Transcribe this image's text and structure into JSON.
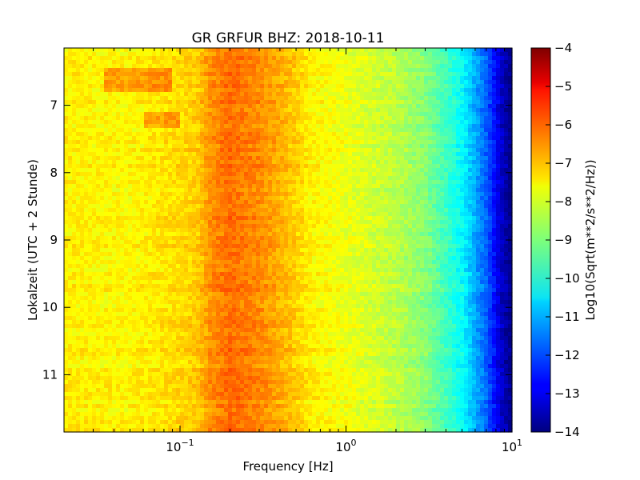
{
  "chart_data": {
    "type": "heatmap",
    "title": "GR GRFUR BHZ: 2018-10-11",
    "xlabel": "Frequency [Hz]",
    "ylabel": "Lokalzeit (UTC + 2 Stunde)",
    "x_scale": "log",
    "xlim": [
      0.02,
      10
    ],
    "ylim": [
      6.15,
      11.85
    ],
    "y_inverted": true,
    "x_ticks": [
      {
        "value": 0.1,
        "base": "10",
        "exp": "−1"
      },
      {
        "value": 1,
        "base": "10",
        "exp": "0"
      },
      {
        "value": 10,
        "base": "10",
        "exp": "1"
      }
    ],
    "y_ticks": [
      7,
      8,
      9,
      10,
      11
    ],
    "y_tick_labels": [
      "7",
      "8",
      "9",
      "10",
      "11"
    ],
    "colorbar": {
      "label": "Log10(Sqrt(m**2/s**2/Hz))",
      "colormap": "jet",
      "range": [
        -14,
        -4
      ],
      "ticks": [
        -4,
        -5,
        -6,
        -7,
        -8,
        -9,
        -10,
        -11,
        -12,
        -13,
        -14
      ],
      "tick_labels": [
        "−4",
        "−5",
        "−6",
        "−7",
        "−8",
        "−9",
        "−10",
        "−11",
        "−12",
        "−13",
        "−14"
      ]
    },
    "spectrum_profile": {
      "frequency_hz": [
        0.02,
        0.05,
        0.1,
        0.13,
        0.15,
        0.2,
        0.3,
        0.45,
        0.6,
        1.0,
        2.0,
        3.0,
        5.0,
        7.0,
        8.5,
        10.0
      ],
      "log10_amplitude": [
        -7.6,
        -7.7,
        -7.4,
        -7.2,
        -6.7,
        -6.3,
        -6.6,
        -7.1,
        -7.6,
        -7.9,
        -8.4,
        -8.9,
        -10.2,
        -11.8,
        -13.2,
        -14.0
      ]
    },
    "grid": false
  }
}
